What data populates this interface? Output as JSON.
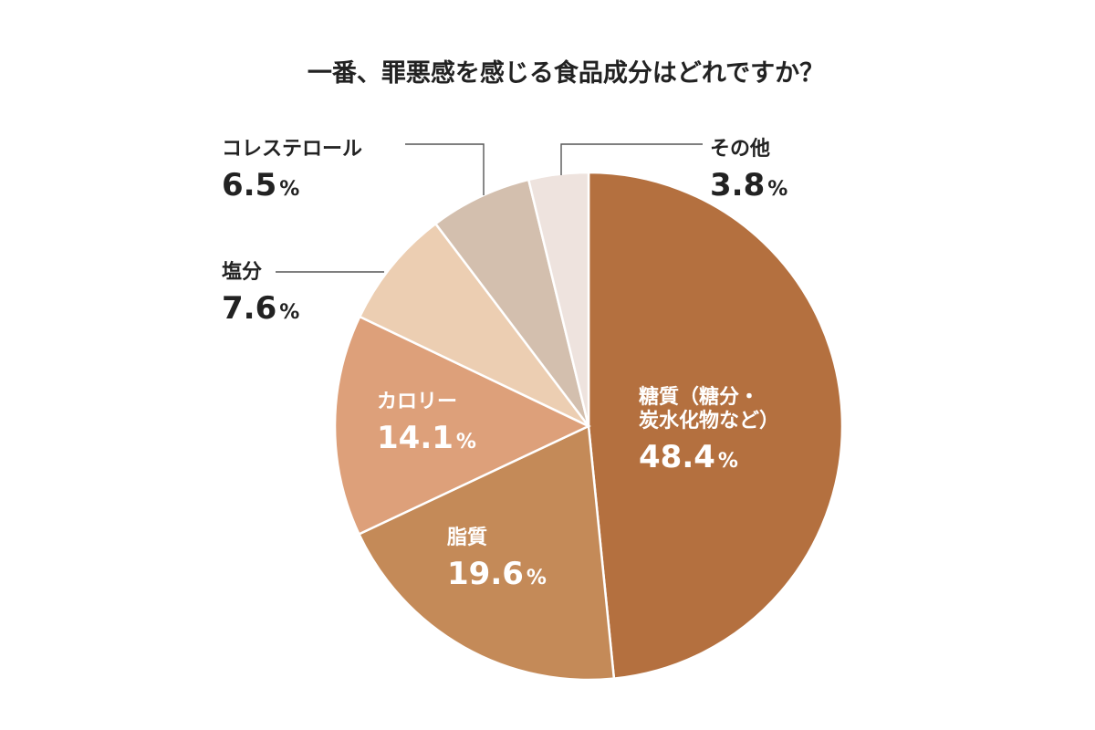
{
  "chart_data": {
    "type": "pie",
    "title": "一番、罪悪感を感じる食品成分はどれですか？",
    "unit": "%",
    "slices": [
      {
        "label_lines": [
          "糖質（糖分・",
          "炭水化物など）"
        ],
        "value": 48.4,
        "value_text": "48.4",
        "color": "#b4703f"
      },
      {
        "label_lines": [
          "脂質"
        ],
        "value": 19.6,
        "value_text": "19.6",
        "color": "#c48a58"
      },
      {
        "label_lines": [
          "カロリー"
        ],
        "value": 14.1,
        "value_text": "14.1",
        "color": "#dda07a"
      },
      {
        "label_lines": [
          "塩分"
        ],
        "value": 7.6,
        "value_text": "7.6",
        "color": "#ecceb2"
      },
      {
        "label_lines": [
          "コレステロール"
        ],
        "value": 6.5,
        "value_text": "6.5",
        "color": "#d3bfae"
      },
      {
        "label_lines": [
          "その他"
        ],
        "value": 3.8,
        "value_text": "3.8",
        "color": "#eee3de"
      }
    ],
    "legend": "none"
  }
}
